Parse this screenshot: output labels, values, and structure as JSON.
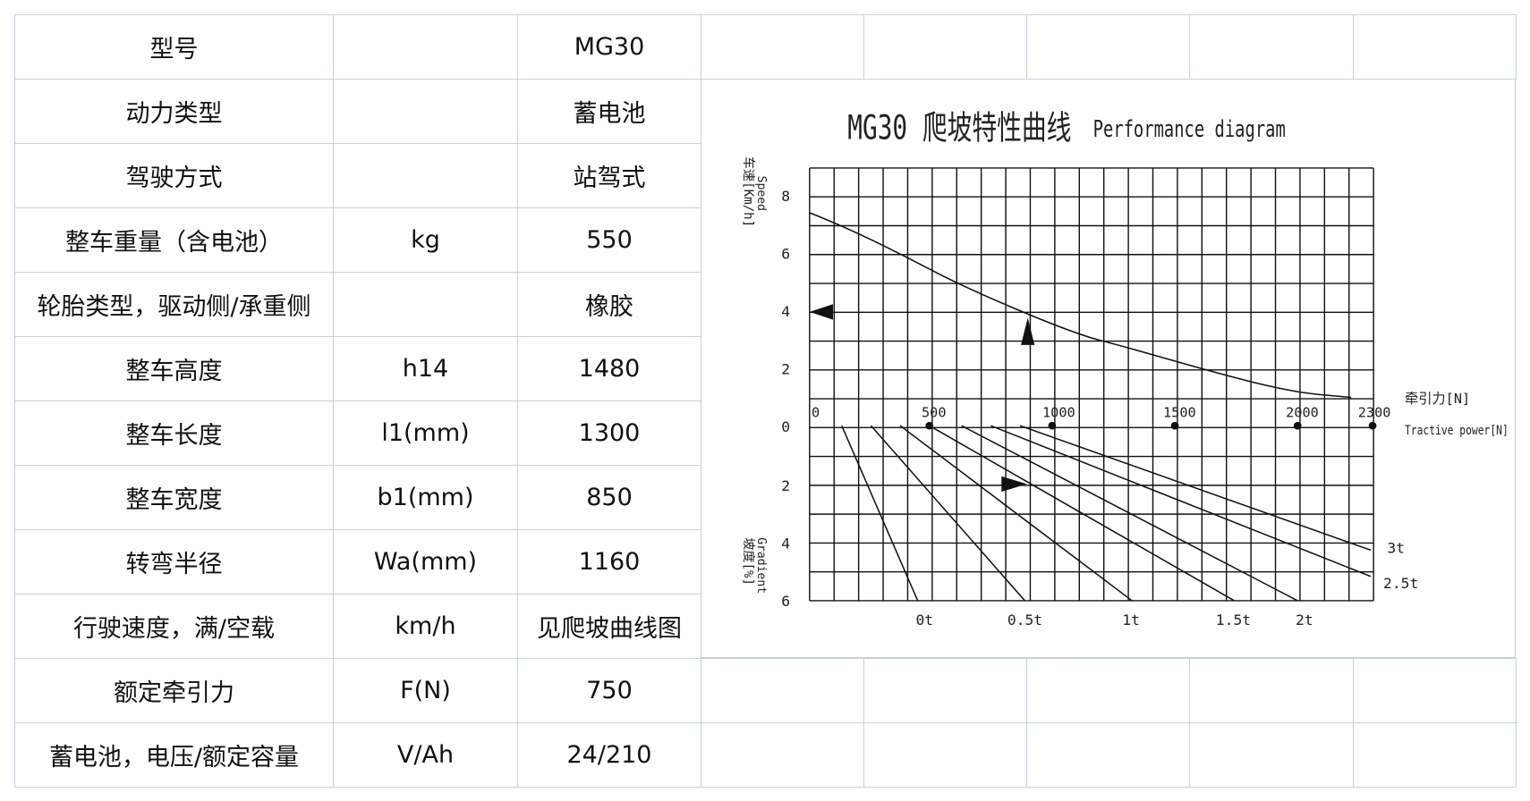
{
  "table": {
    "rows": [
      {
        "name": "型号",
        "value": "MG30"
      },
      {
        "name": "动力类型",
        "value": "蓄电池"
      },
      {
        "name": "驾驶方式",
        "value": "站驾式"
      },
      {
        "name": "整车重量（含电池）",
        "unit": "kg",
        "value": "550"
      },
      {
        "name": "轮胎类型，驱动侧/承重侧",
        "value": "橡胶"
      },
      {
        "name": "整车高度",
        "unit": "h14",
        "value": "1480"
      },
      {
        "name": "整车长度",
        "unit": "l1(mm)",
        "value": "1300"
      },
      {
        "name": "整车宽度",
        "unit": "b1(mm)",
        "value": "850"
      },
      {
        "name": "转弯半径",
        "unit": "Wa(mm)",
        "value": "1160"
      },
      {
        "name": "行驶速度，满/空载",
        "unit": "km/h",
        "value": "见爬坡曲线图"
      },
      {
        "name": "额定牵引力",
        "unit": "F(N)",
        "value": "750"
      },
      {
        "name": "蓄电池，电压/额定容量",
        "unit": "V/Ah",
        "value": "24/210"
      }
    ]
  },
  "diagram": {
    "title": "MG30 爬坡特性曲线",
    "subtitle": "Performance diagram",
    "speed_label": "车速[Km/h]",
    "speed_label_en": "Speed",
    "gradient_label": "坡度[%]",
    "gradient_label_en": "Gradient",
    "x_label": "牵引力[N]",
    "x_label_en": "Tractive power[N]",
    "speed_ticks": [
      "8",
      "6",
      "4",
      "2",
      "0"
    ],
    "gradient_ticks": [
      "2",
      "4",
      "6"
    ],
    "x_ticks": [
      "0",
      "500",
      "1000",
      "1500",
      "2000",
      "2300"
    ],
    "load_labels": [
      "0t",
      "0.5t",
      "1t",
      "1.5t",
      "2t",
      "2.5t",
      "3t"
    ]
  }
}
